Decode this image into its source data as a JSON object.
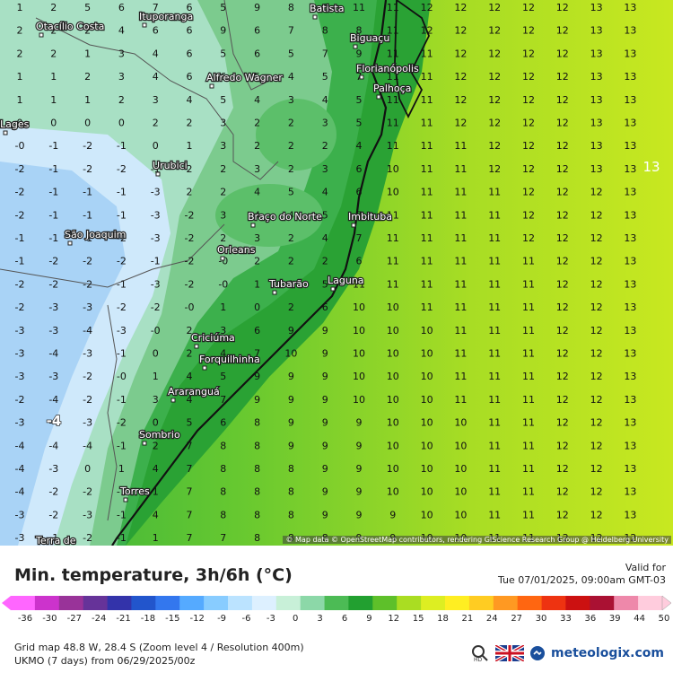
{
  "title": "Min. temperature, 3h/6h (°C)",
  "valid_label": "Valid for",
  "valid_time": "Tue 07/01/2025, 09:00am GMT-03",
  "attribution": "© Map data © OpenStreetMap contributors, rendering GIScience Research Group @ Heidelberg University",
  "grid_info": "Grid map 48.8 W, 28.4 S (Zoom level 4 / Resolution 400m)",
  "model_info": "UKMO (7 days) from 06/29/2025/00z",
  "brand": "meteologix.com",
  "icons": [
    "search-hd-icon",
    "uk-flag-icon",
    "meteologix-logo-icon"
  ],
  "search_badge": "HD",
  "scale": {
    "ticks": [
      "-36",
      "-30",
      "-27",
      "-24",
      "-21",
      "-18",
      "-15",
      "-12",
      "-9",
      "-6",
      "-3",
      "0",
      "3",
      "6",
      "9",
      "12",
      "15",
      "18",
      "21",
      "24",
      "27",
      "30",
      "33",
      "36",
      "39",
      "44",
      "50"
    ],
    "colors": [
      "#ff66ff",
      "#cc33cc",
      "#993399",
      "#663399",
      "#3333aa",
      "#2255cc",
      "#3377ee",
      "#55aaff",
      "#88ccff",
      "#bbe3ff",
      "#ddf0ff",
      "#c8f0d8",
      "#8cd8a8",
      "#4cbb55",
      "#22a030",
      "#5ec02a",
      "#aadd22",
      "#ddee22",
      "#ffee22",
      "#ffcc22",
      "#ff9922",
      "#ff6611",
      "#ee3311",
      "#cc1111",
      "#aa1133",
      "#ee88aa",
      "#ffccdd"
    ]
  },
  "cities": [
    {
      "name": "Batista"
    },
    {
      "name": "Ituporanga"
    },
    {
      "name": "Otacílio Costa"
    },
    {
      "name": "Biguaçu"
    },
    {
      "name": "Florianópolis"
    },
    {
      "name": "Palhoça"
    },
    {
      "name": "Alfredo Wagner"
    },
    {
      "name": "Urubici"
    },
    {
      "name": "Imbituba"
    },
    {
      "name": "São Joaquim"
    },
    {
      "name": "Braço do Norte"
    },
    {
      "name": "Orleans"
    },
    {
      "name": "Tubarão"
    },
    {
      "name": "Laguna"
    },
    {
      "name": "Criciúma"
    },
    {
      "name": "Forquilhinha"
    },
    {
      "name": "Araranguá"
    },
    {
      "name": "Sombrio"
    },
    {
      "name": "Torres"
    },
    {
      "name": "Lages"
    },
    {
      "name": "Terra de"
    }
  ],
  "extra_labels": [
    "13",
    "-4"
  ],
  "rows": [
    [
      "1",
      "2",
      "5",
      "6",
      "7",
      "6",
      "5",
      "9",
      "8",
      "9",
      "11",
      "11",
      "12",
      "12",
      "12",
      "12",
      "12",
      "13",
      "13"
    ],
    [
      "2",
      "2",
      "2",
      "4",
      "6",
      "6",
      "9",
      "6",
      "7",
      "8",
      "8",
      "11",
      "12",
      "12",
      "12",
      "12",
      "12",
      "13",
      "13"
    ],
    [
      "2",
      "2",
      "1",
      "3",
      "4",
      "6",
      "5",
      "6",
      "5",
      "7",
      "9",
      "11",
      "11",
      "12",
      "12",
      "12",
      "12",
      "13",
      "13"
    ],
    [
      "1",
      "1",
      "2",
      "3",
      "4",
      "6",
      "6",
      "5",
      "4",
      "5",
      "7",
      "11",
      "11",
      "12",
      "12",
      "12",
      "12",
      "13",
      "13"
    ],
    [
      "1",
      "1",
      "1",
      "2",
      "3",
      "4",
      "5",
      "4",
      "3",
      "4",
      "5",
      "11",
      "11",
      "12",
      "12",
      "12",
      "12",
      "13",
      "13"
    ],
    [
      "0",
      "0",
      "0",
      "0",
      "2",
      "2",
      "3",
      "2",
      "2",
      "3",
      "5",
      "11",
      "11",
      "12",
      "12",
      "12",
      "12",
      "13",
      "13"
    ],
    [
      "-0",
      "-1",
      "-2",
      "-1",
      "0",
      "1",
      "3",
      "2",
      "2",
      "2",
      "4",
      "11",
      "11",
      "11",
      "12",
      "12",
      "12",
      "13",
      "13"
    ],
    [
      "-2",
      "-1",
      "-2",
      "-2",
      "-1",
      "2",
      "2",
      "3",
      "2",
      "3",
      "6",
      "10",
      "11",
      "11",
      "12",
      "12",
      "12",
      "13",
      "13"
    ],
    [
      "-2",
      "-1",
      "-1",
      "-1",
      "-3",
      "2",
      "2",
      "4",
      "5",
      "4",
      "6",
      "10",
      "11",
      "11",
      "11",
      "12",
      "12",
      "12",
      "13"
    ],
    [
      "-2",
      "-1",
      "-1",
      "-1",
      "-3",
      "-2",
      "3",
      "4",
      "4",
      "5",
      "7",
      "11",
      "11",
      "11",
      "11",
      "12",
      "12",
      "12",
      "13"
    ],
    [
      "-1",
      "-1",
      "-1",
      "-2",
      "-3",
      "-2",
      "2",
      "3",
      "2",
      "4",
      "7",
      "11",
      "11",
      "11",
      "11",
      "12",
      "12",
      "12",
      "13"
    ],
    [
      "-1",
      "-2",
      "-2",
      "-2",
      "-1",
      "-2",
      "-0",
      "2",
      "2",
      "2",
      "6",
      "11",
      "11",
      "11",
      "11",
      "11",
      "12",
      "12",
      "13"
    ],
    [
      "-2",
      "-2",
      "-2",
      "-1",
      "-3",
      "-2",
      "-0",
      "1",
      "1",
      "5",
      "11",
      "11",
      "11",
      "11",
      "11",
      "11",
      "12",
      "12",
      "13"
    ],
    [
      "-2",
      "-3",
      "-3",
      "-2",
      "-2",
      "-0",
      "1",
      "0",
      "2",
      "6",
      "10",
      "10",
      "11",
      "11",
      "11",
      "11",
      "12",
      "12",
      "13"
    ],
    [
      "-3",
      "-3",
      "-4",
      "-3",
      "-0",
      "2",
      "3",
      "6",
      "9",
      "9",
      "10",
      "10",
      "10",
      "11",
      "11",
      "11",
      "12",
      "12",
      "13"
    ],
    [
      "-3",
      "-4",
      "-3",
      "-1",
      "0",
      "2",
      "4",
      "7",
      "10",
      "9",
      "10",
      "10",
      "10",
      "11",
      "11",
      "11",
      "12",
      "12",
      "13"
    ],
    [
      "-3",
      "-3",
      "-2",
      "-0",
      "1",
      "4",
      "5",
      "9",
      "9",
      "9",
      "10",
      "10",
      "10",
      "11",
      "11",
      "11",
      "12",
      "12",
      "13"
    ],
    [
      "-2",
      "-4",
      "-2",
      "-1",
      "3",
      "4",
      "7",
      "9",
      "9",
      "9",
      "10",
      "10",
      "10",
      "11",
      "11",
      "11",
      "12",
      "12",
      "13"
    ],
    [
      "-3",
      "-4",
      "-3",
      "-2",
      "0",
      "5",
      "6",
      "8",
      "9",
      "9",
      "9",
      "10",
      "10",
      "10",
      "11",
      "11",
      "12",
      "12",
      "13"
    ],
    [
      "-4",
      "-4",
      "-4",
      "-1",
      "2",
      "7",
      "8",
      "8",
      "9",
      "9",
      "9",
      "10",
      "10",
      "10",
      "11",
      "11",
      "12",
      "12",
      "13"
    ],
    [
      "-4",
      "-3",
      "0",
      "1",
      "4",
      "7",
      "8",
      "8",
      "8",
      "9",
      "9",
      "10",
      "10",
      "10",
      "11",
      "11",
      "12",
      "12",
      "13"
    ],
    [
      "-4",
      "-2",
      "-2",
      "-1",
      "1",
      "7",
      "8",
      "8",
      "8",
      "9",
      "9",
      "10",
      "10",
      "10",
      "11",
      "11",
      "12",
      "12",
      "13"
    ],
    [
      "-3",
      "-2",
      "-3",
      "-1",
      "4",
      "7",
      "8",
      "8",
      "8",
      "9",
      "9",
      "9",
      "10",
      "10",
      "11",
      "11",
      "12",
      "12",
      "13"
    ],
    [
      "-3",
      "-1",
      "-2",
      "-1",
      "1",
      "7",
      "7",
      "8",
      "8",
      "8",
      "9",
      "9",
      "10",
      "10",
      "11",
      "11",
      "12",
      "12",
      "12"
    ]
  ]
}
